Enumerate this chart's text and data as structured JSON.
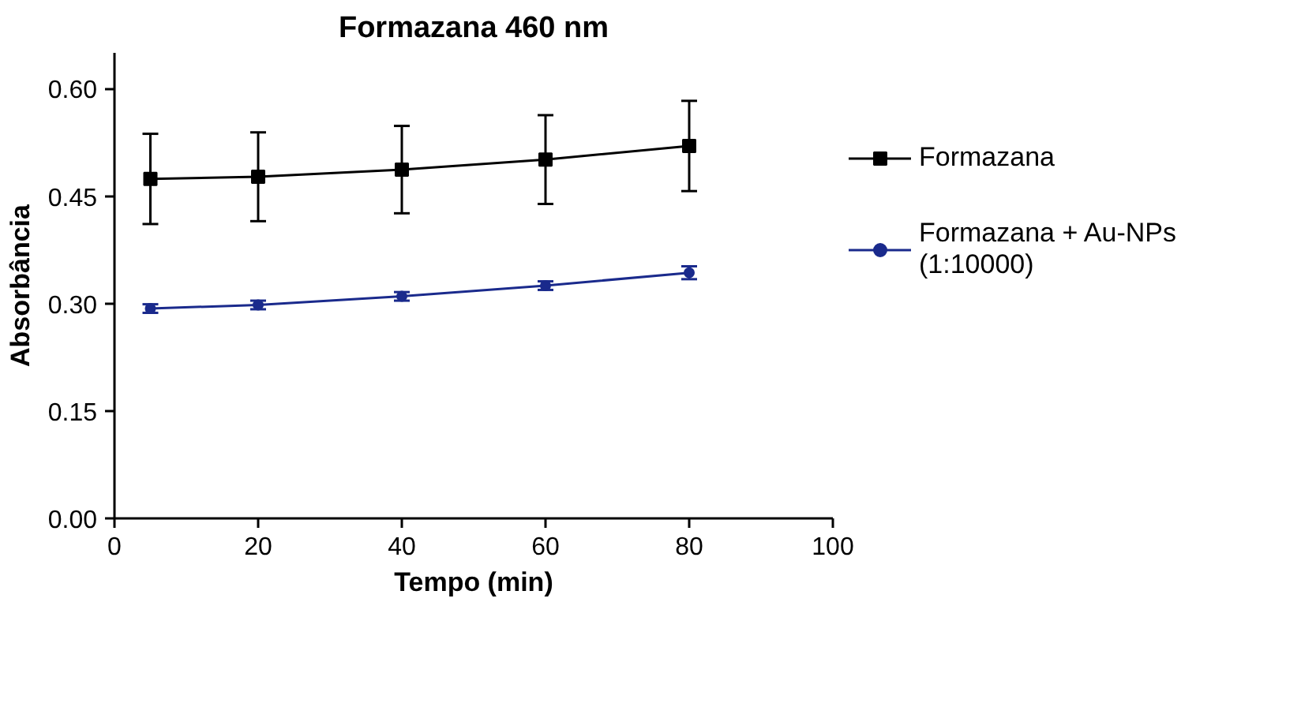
{
  "chart_data": {
    "type": "line",
    "title": "Formazana 460 nm",
    "xlabel": "Tempo (min)",
    "ylabel": "Absorbância",
    "x": [
      5,
      20,
      40,
      60,
      80
    ],
    "series": [
      {
        "name": "Formazana",
        "color": "#000000",
        "marker": "square",
        "values": [
          0.474,
          0.477,
          0.487,
          0.501,
          0.52
        ],
        "errors": [
          0.063,
          0.062,
          0.061,
          0.062,
          0.063
        ]
      },
      {
        "name": "Formazana + Au-NPs\n(1:10000)",
        "color": "#1a2a8c",
        "marker": "circle",
        "values": [
          0.293,
          0.298,
          0.31,
          0.325,
          0.343
        ],
        "errors": [
          0.006,
          0.006,
          0.006,
          0.006,
          0.009
        ]
      }
    ],
    "xlim": [
      0,
      100
    ],
    "xticks": [
      0,
      20,
      40,
      60,
      80,
      100
    ],
    "ylim": [
      0,
      0.65
    ],
    "yticks": [
      {
        "value": 0,
        "label": "0.00"
      },
      {
        "value": 0.15,
        "label": "0.15"
      },
      {
        "value": 0.3,
        "label": "0.30"
      },
      {
        "value": 0.45,
        "label": "0.45"
      },
      {
        "value": 0.6,
        "label": "0.60"
      }
    ],
    "grid": false,
    "legend": "right"
  }
}
